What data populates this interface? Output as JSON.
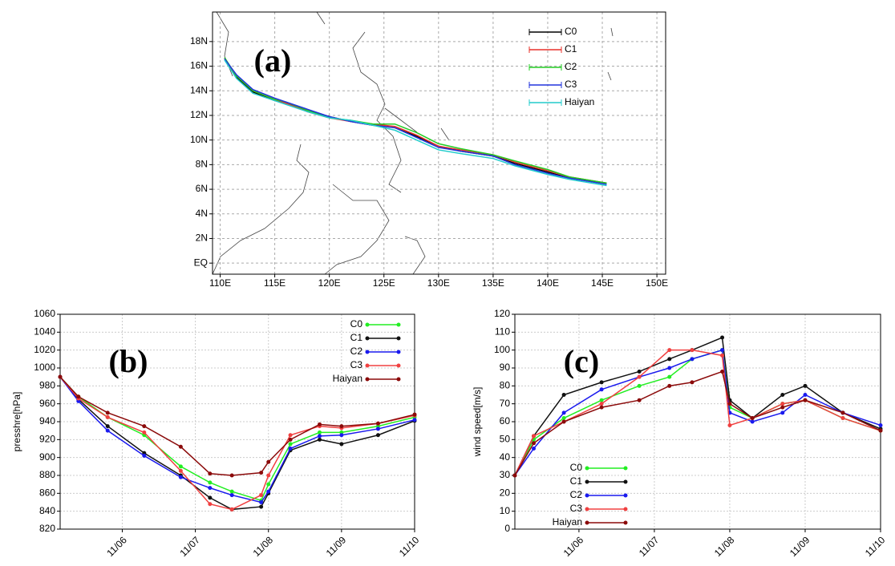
{
  "chart_data": [
    {
      "type": "line",
      "label": "(a)",
      "x": [
        145.4,
        142,
        140,
        137,
        135,
        132,
        130,
        128,
        126,
        124,
        122,
        120,
        118,
        116,
        115,
        113,
        111.5,
        110.4
      ],
      "xlim": [
        109.3,
        150.8
      ],
      "xticks": [
        {
          "value": 110,
          "label": "110E"
        },
        {
          "value": 115,
          "label": "115E"
        },
        {
          "value": 120,
          "label": "120E"
        },
        {
          "value": 125,
          "label": "125E"
        },
        {
          "value": 130,
          "label": "130E"
        },
        {
          "value": 135,
          "label": "135E"
        },
        {
          "value": 140,
          "label": "140E"
        },
        {
          "value": 145,
          "label": "145E"
        },
        {
          "value": 150,
          "label": "150E"
        }
      ],
      "ylim": [
        -0.9,
        20.4
      ],
      "yticks": [
        {
          "value": 0,
          "label": "EQ"
        },
        {
          "value": 2,
          "label": "2N"
        },
        {
          "value": 4,
          "label": "4N"
        },
        {
          "value": 6,
          "label": "6N"
        },
        {
          "value": 8,
          "label": "8N"
        },
        {
          "value": 10,
          "label": "10N"
        },
        {
          "value": 12,
          "label": "12N"
        },
        {
          "value": 14,
          "label": "14N"
        },
        {
          "value": 16,
          "label": "16N"
        },
        {
          "value": 18,
          "label": "18N"
        }
      ],
      "grid": true,
      "legend": "upper right",
      "series": [
        {
          "name": "C0",
          "color": "#000000",
          "values": [
            6.5,
            6.9,
            7.4,
            8.1,
            8.7,
            9.1,
            9.5,
            10.3,
            11.0,
            11.2,
            11.5,
            11.9,
            12.4,
            13.0,
            13.2,
            13.9,
            15.1,
            16.6
          ]
        },
        {
          "name": "C1",
          "color": "#e8302a",
          "values": [
            6.5,
            7.0,
            7.5,
            8.2,
            8.8,
            9.2,
            9.5,
            10.4,
            11.1,
            11.3,
            11.5,
            11.8,
            12.3,
            13.0,
            13.3,
            14.0,
            15.2,
            16.6
          ]
        },
        {
          "name": "C2",
          "color": "#22cc22",
          "values": [
            6.5,
            7.0,
            7.6,
            8.3,
            8.8,
            9.3,
            9.7,
            10.6,
            11.3,
            11.3,
            11.6,
            11.8,
            12.4,
            13.1,
            13.3,
            14.0,
            15.2,
            16.7
          ]
        },
        {
          "name": "C3",
          "color": "#2233dd",
          "values": [
            6.4,
            6.9,
            7.3,
            8.0,
            8.7,
            9.1,
            9.4,
            10.2,
            11.0,
            11.2,
            11.5,
            11.9,
            12.5,
            13.1,
            13.4,
            14.1,
            15.3,
            16.6
          ]
        },
        {
          "name": "Haiyan",
          "color": "#22cccc",
          "values": [
            6.3,
            6.8,
            7.2,
            7.9,
            8.5,
            8.9,
            9.2,
            10.0,
            10.8,
            11.2,
            11.6,
            11.8,
            12.3,
            12.9,
            13.2,
            13.8,
            15.0,
            16.5
          ]
        }
      ]
    },
    {
      "type": "line",
      "label": "(b)",
      "ylabel": "presshre[hPa]",
      "x": [
        5.15,
        5.4,
        5.8,
        6.3,
        6.8,
        7.2,
        7.5,
        7.9,
        8.0,
        8.3,
        8.7,
        9.0,
        9.5,
        10
      ],
      "xlim": [
        5.15,
        10
      ],
      "xticks": [
        {
          "value": 6,
          "label": "11/06"
        },
        {
          "value": 7,
          "label": "11/07"
        },
        {
          "value": 8,
          "label": "11/08"
        },
        {
          "value": 9,
          "label": "11/09"
        },
        {
          "value": 10,
          "label": "11/10"
        }
      ],
      "ylim": [
        820,
        1060
      ],
      "yticks": [
        820,
        840,
        860,
        880,
        900,
        920,
        940,
        960,
        980,
        1000,
        1020,
        1040,
        1060
      ],
      "grid": true,
      "legend": "upper right",
      "series": [
        {
          "name": "C0",
          "color": "#22ee22",
          "values": [
            990,
            968,
            945,
            925,
            890,
            872,
            862,
            852,
            870,
            915,
            928,
            928,
            935,
            945
          ]
        },
        {
          "name": "C1",
          "color": "#111111",
          "values": [
            990,
            965,
            935,
            905,
            880,
            855,
            842,
            845,
            860,
            908,
            920,
            915,
            925,
            941
          ]
        },
        {
          "name": "C2",
          "color": "#1a1aee",
          "values": [
            990,
            963,
            930,
            902,
            878,
            866,
            858,
            850,
            862,
            910,
            924,
            925,
            932,
            942
          ]
        },
        {
          "name": "C3",
          "color": "#f04040",
          "values": [
            990,
            966,
            945,
            928,
            885,
            848,
            842,
            858,
            880,
            925,
            935,
            933,
            938,
            947
          ]
        },
        {
          "name": "Haiyan",
          "color": "#8b0a0a",
          "values": [
            990,
            968,
            950,
            935,
            912,
            882,
            880,
            883,
            895,
            920,
            937,
            935,
            938,
            948
          ]
        }
      ]
    },
    {
      "type": "line",
      "label": "(c)",
      "ylabel": "wind speed[m/s]",
      "x": [
        5.15,
        5.4,
        5.8,
        6.3,
        6.8,
        7.2,
        7.5,
        7.9,
        8.0,
        8.3,
        8.7,
        9.0,
        9.5,
        10
      ],
      "xlim": [
        5.15,
        10
      ],
      "xticks": [
        {
          "value": 6,
          "label": "11/06"
        },
        {
          "value": 7,
          "label": "11/07"
        },
        {
          "value": 8,
          "label": "11/08"
        },
        {
          "value": 9,
          "label": "11/09"
        },
        {
          "value": 10,
          "label": "11/10"
        }
      ],
      "ylim": [
        0,
        120
      ],
      "yticks": [
        0,
        10,
        20,
        30,
        40,
        50,
        60,
        70,
        80,
        90,
        100,
        110,
        120
      ],
      "grid": true,
      "legend": "lower left",
      "series": [
        {
          "name": "C0",
          "color": "#22ee22",
          "values": [
            30,
            50,
            62,
            72,
            80,
            85,
            95,
            100,
            68,
            62,
            70,
            72,
            62,
            55
          ]
        },
        {
          "name": "C1",
          "color": "#111111",
          "values": [
            30,
            52,
            75,
            82,
            88,
            95,
            100,
            107,
            72,
            62,
            75,
            80,
            65,
            56
          ]
        },
        {
          "name": "C2",
          "color": "#1a1aee",
          "values": [
            30,
            45,
            65,
            78,
            85,
            90,
            95,
            100,
            65,
            60,
            65,
            75,
            65,
            58
          ]
        },
        {
          "name": "C3",
          "color": "#f04040",
          "values": [
            30,
            52,
            60,
            70,
            85,
            100,
            100,
            97,
            58,
            62,
            70,
            72,
            62,
            55
          ]
        },
        {
          "name": "Haiyan",
          "color": "#8b0a0a",
          "values": [
            30,
            48,
            60,
            68,
            72,
            80,
            82,
            88,
            70,
            62,
            68,
            72,
            65,
            55
          ]
        }
      ]
    }
  ]
}
